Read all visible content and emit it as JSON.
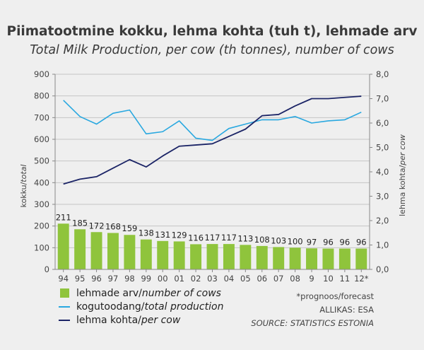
{
  "title": "Piimatootmine kokku, lehma kohta (tuh t), lehmade arv",
  "subtitle": "Total Milk Production, per cow (th tonnes), number of cows",
  "colors": {
    "bars": "#8fc43c",
    "total": "#29a8e0",
    "per_cow": "#1b2466",
    "axis": "#888888",
    "background": "#efefef"
  },
  "legend": [
    {
      "prefix": "lehmade arv/",
      "suffix": "number of cows",
      "kind": "bar"
    },
    {
      "prefix": "kogutoodang/",
      "suffix": "total production",
      "kind": "line-total"
    },
    {
      "prefix": "lehma kohta/",
      "suffix": "per cow",
      "kind": "line-percow"
    }
  ],
  "notes": {
    "forecast": "*prognoos/forecast",
    "source_et": "ALLIKAS: ESA",
    "source_en": "SOURCE: STATISTICS ESTONIA"
  },
  "chart_data": {
    "type": "bar",
    "categories": [
      "94",
      "95",
      "96",
      "97",
      "98",
      "99",
      "00",
      "01",
      "02",
      "03",
      "04",
      "05",
      "06",
      "07",
      "08",
      "9",
      "10",
      "11",
      "12*"
    ],
    "yleft_label": "kokku/total",
    "yright_label": "lehma kohta/per cow",
    "yleft_ticks": [
      "0",
      "100",
      "200",
      "300",
      "400",
      "500",
      "600",
      "700",
      "800",
      "900"
    ],
    "yright_ticks": [
      "0,0",
      "1,0",
      "2,0",
      "3,0",
      "4,0",
      "5,0",
      "6,0",
      "7,0",
      "8,0"
    ],
    "ylim_left": [
      0,
      900
    ],
    "ylim_right": [
      0,
      8
    ],
    "series": [
      {
        "name": "lehmade arv/number of cows",
        "type": "bar",
        "axis": "left",
        "values": [
          211,
          185,
          172,
          168,
          159,
          138,
          131,
          129,
          116,
          117,
          117,
          113,
          108,
          103,
          100,
          97,
          96,
          96,
          96
        ],
        "labels": [
          "211",
          "185",
          "172",
          "168",
          "159",
          "138",
          "131",
          "129",
          "116",
          "117",
          "117",
          "113",
          "108",
          "103",
          "100",
          "97",
          "96",
          "96",
          "96"
        ]
      },
      {
        "name": "kogutoodang/total production",
        "type": "line",
        "axis": "left",
        "values": [
          780,
          705,
          670,
          720,
          735,
          625,
          635,
          685,
          605,
          595,
          650,
          670,
          690,
          690,
          705,
          675,
          685,
          690,
          725
        ]
      },
      {
        "name": "lehma kohta/per cow",
        "type": "line",
        "axis": "right",
        "values": [
          3.5,
          3.7,
          3.8,
          4.15,
          4.5,
          4.2,
          4.65,
          5.05,
          5.1,
          5.15,
          5.45,
          5.75,
          6.3,
          6.35,
          6.7,
          7.0,
          7.0,
          7.05,
          7.1
        ]
      }
    ],
    "grid": true
  }
}
